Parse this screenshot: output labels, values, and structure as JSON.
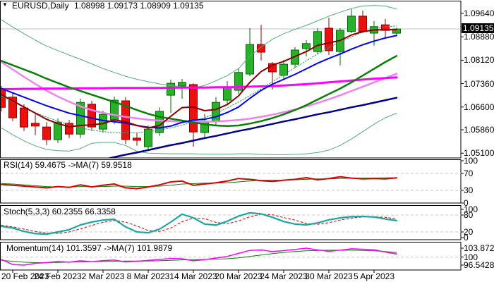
{
  "title": {
    "dropdown_glyph": "▼",
    "symbol_timeframe": "EURUSD,Daily",
    "ohlc_text": "1.08998 1.09173 1.08909 1.09135"
  },
  "colors": {
    "background": "#ffffff",
    "panel_border": "#000000",
    "bull_fill": "#29b129",
    "bull_stroke": "#006b00",
    "bear_fill": "#ed0e0e",
    "bear_stroke": "#8b0000",
    "current_price_line": "#c0c0c0",
    "level_dash": "#c8c8c8",
    "axis_text": "#000000",
    "badge_bg": "#000000",
    "badge_text": "#ffffff"
  },
  "chart_data": {
    "type": "candlestick",
    "symbol": "EURUSD",
    "timeframe": "Daily",
    "title": "EURUSD,Daily 1.08998 1.09173 1.08909 1.09135",
    "current_price_label": "1.09135",
    "current_price": 1.09135,
    "price_axis": {
      "labels": [
        "1.09640",
        "1.08880",
        "1.08120",
        "1.07360",
        "1.06600",
        "1.05860",
        "1.05100"
      ],
      "values": [
        1.0964,
        1.0888,
        1.0812,
        1.0736,
        1.066,
        1.0586,
        1.051
      ]
    },
    "x_axis": {
      "tick_labels": [
        "20 Feb 2023",
        "24 Feb 2023",
        "2 Mar 2023",
        "8 Mar 2023",
        "14 Mar 2023",
        "20 Mar 2023",
        "24 Mar 2023",
        "30 Mar 2023",
        "5 Apr 2023"
      ],
      "tick_candle_indices": [
        1,
        5,
        9,
        13,
        17,
        21,
        25,
        29,
        33
      ]
    },
    "candles": [
      [
        1.0717,
        1.0728,
        1.0646,
        1.0659
      ],
      [
        1.0692,
        1.0705,
        1.0614,
        1.0625
      ],
      [
        1.0657,
        1.0669,
        1.0582,
        1.0595
      ],
      [
        1.0607,
        1.0637,
        1.0568,
        1.0598
      ],
      [
        1.0595,
        1.0611,
        1.0536,
        1.0554
      ],
      [
        1.0554,
        1.0623,
        1.0543,
        1.0611
      ],
      [
        1.0607,
        1.0618,
        1.0559,
        1.0572
      ],
      [
        1.0572,
        1.0687,
        1.0559,
        1.0675
      ],
      [
        1.0669,
        1.068,
        1.0582,
        1.0595
      ],
      [
        1.0588,
        1.0648,
        1.0577,
        1.0636
      ],
      [
        1.0618,
        1.0694,
        1.0604,
        1.0682
      ],
      [
        1.068,
        1.0692,
        1.054,
        1.0554
      ],
      [
        1.0559,
        1.0575,
        1.0534,
        1.0552
      ],
      [
        1.0531,
        1.06,
        1.052,
        1.0588
      ],
      [
        1.0577,
        1.0659,
        1.0566,
        1.0646
      ],
      [
        1.0698,
        1.0749,
        1.0641,
        1.0737
      ],
      [
        1.0728,
        1.0751,
        1.0687,
        1.074
      ],
      [
        1.0733,
        1.0737,
        1.0531,
        1.0579
      ],
      [
        1.0577,
        1.0637,
        1.0561,
        1.0614
      ],
      [
        1.0614,
        1.0692,
        1.0602,
        1.0675
      ],
      [
        1.0682,
        1.0744,
        1.0671,
        1.0726
      ],
      [
        1.0714,
        1.0785,
        1.0703,
        1.0772
      ],
      [
        1.0767,
        1.0916,
        1.076,
        1.0863
      ],
      [
        1.0863,
        1.0927,
        1.0811,
        1.0838
      ],
      [
        1.0801,
        1.0806,
        1.0717,
        1.0774
      ],
      [
        1.0763,
        1.0813,
        1.0747,
        1.0799
      ],
      [
        1.0799,
        1.0854,
        1.0788,
        1.0845
      ],
      [
        1.085,
        1.0877,
        1.0824,
        1.0866
      ],
      [
        1.084,
        1.0916,
        1.0831,
        1.0905
      ],
      [
        1.0916,
        1.095,
        1.0829,
        1.0843
      ],
      [
        1.084,
        1.0916,
        1.0795,
        1.0909
      ],
      [
        1.0905,
        1.0978,
        1.09,
        1.0955
      ],
      [
        1.0955,
        1.0973,
        1.09,
        1.0905
      ],
      [
        1.09,
        1.0939,
        1.0859,
        1.0921
      ],
      [
        1.0927,
        1.0946,
        1.0886,
        1.0909
      ],
      [
        1.08998,
        1.09173,
        1.08909,
        1.09135
      ]
    ],
    "overlays": [
      {
        "name": "bollinger-upper-band",
        "color": "#56ab7c",
        "width": 1,
        "dash": "",
        "values": [
          1.0943,
          1.092,
          1.0898,
          1.0877,
          1.0858,
          1.0843,
          1.0829,
          1.0815,
          1.08,
          1.0785,
          1.0772,
          1.076,
          1.075,
          1.0742,
          1.0735,
          1.073,
          1.0726,
          1.0722,
          1.073,
          1.0745,
          1.0762,
          1.0785,
          1.0825,
          1.0855,
          1.088,
          1.0898,
          1.0912,
          1.0925,
          1.094,
          1.0955,
          1.0968,
          1.098,
          1.0988,
          1.099,
          1.0988,
          1.0978
        ]
      },
      {
        "name": "bollinger-lower-band",
        "color": "#56ab7c",
        "width": 1,
        "dash": "",
        "values": [
          1.0592,
          1.057,
          1.055,
          1.0534,
          1.0522,
          1.0518,
          1.0517,
          1.0525,
          1.0542,
          1.0545,
          1.0545,
          1.0535,
          1.0516,
          1.051,
          1.0509,
          1.0508,
          1.0508,
          1.0508,
          1.0507,
          1.0507,
          1.0507,
          1.0508,
          1.0508,
          1.0506,
          1.0505,
          1.0505,
          1.0506,
          1.0508,
          1.0512,
          1.052,
          1.0535,
          1.0556,
          1.058,
          1.0604,
          1.0625,
          1.064
        ]
      },
      {
        "name": "bollinger-middle-band",
        "color": "#3f9e68",
        "width": 1,
        "dash": "2,2",
        "values": [
          1.0696,
          1.0677,
          1.0659,
          1.0642,
          1.0627,
          1.0614,
          1.0602,
          1.0592,
          1.0585,
          1.058,
          1.0577,
          1.0576,
          1.0577,
          1.058,
          1.0585,
          1.0592,
          1.0601,
          1.0612,
          1.0625,
          1.064,
          1.0657,
          1.0676,
          1.0697,
          1.0719,
          1.0742,
          1.0765,
          1.0788,
          1.081,
          1.0832,
          1.0852,
          1.0871,
          1.0888,
          1.0903,
          1.0914,
          1.0921,
          1.0923
        ]
      },
      {
        "name": "sma200-navy",
        "color": "#00008b",
        "width": 2.5,
        "dash": "",
        "values": [
          1.042,
          1.0428,
          1.0436,
          1.0443,
          1.0451,
          1.0459,
          1.0466,
          1.0474,
          1.0482,
          1.0489,
          1.0497,
          1.0505,
          1.0512,
          1.052,
          1.0528,
          1.0536,
          1.0543,
          1.0551,
          1.0559,
          1.0566,
          1.0574,
          1.0582,
          1.0589,
          1.0597,
          1.0605,
          1.0613,
          1.062,
          1.0628,
          1.0636,
          1.0643,
          1.0651,
          1.0659,
          1.0666,
          1.0674,
          1.0682,
          1.069
        ]
      },
      {
        "name": "sma50-violet",
        "color": "#ee82ee",
        "width": 2.5,
        "dash": "",
        "values": [
          1.0806,
          1.0782,
          1.0758,
          1.0735,
          1.0713,
          1.0694,
          1.0677,
          1.0662,
          1.065,
          1.0641,
          1.0634,
          1.0628,
          1.0623,
          1.0619,
          1.0616,
          1.0614,
          1.0613,
          1.0612,
          1.0612,
          1.0613,
          1.0615,
          1.0618,
          1.0622,
          1.0628,
          1.0635,
          1.0643,
          1.0652,
          1.0662,
          1.0673,
          1.0685,
          1.0698,
          1.0712,
          1.0726,
          1.074,
          1.0754,
          1.0768
        ]
      },
      {
        "name": "sma100-magenta",
        "color": "#ff00ff",
        "width": 3,
        "dash": "",
        "values": [
          1.0718,
          1.0718,
          1.0719,
          1.0719,
          1.072,
          1.072,
          1.072,
          1.0721,
          1.0721,
          1.0721,
          1.0722,
          1.0722,
          1.0722,
          1.0722,
          1.0722,
          1.0723,
          1.0723,
          1.0723,
          1.0723,
          1.0724,
          1.0724,
          1.0725,
          1.0726,
          1.0727,
          1.0728,
          1.073,
          1.0732,
          1.0734,
          1.0737,
          1.074,
          1.0743,
          1.0746,
          1.0749,
          1.0752,
          1.0754,
          1.0756
        ]
      },
      {
        "name": "ma-slow-green",
        "color": "#078007",
        "width": 2.5,
        "dash": "",
        "values": [
          1.081,
          1.0796,
          1.0782,
          1.0768,
          1.0752,
          1.0738,
          1.0724,
          1.0712,
          1.07,
          1.0688,
          1.0676,
          1.0664,
          1.065,
          1.0638,
          1.0628,
          1.0622,
          1.0616,
          1.061,
          1.0604,
          1.06,
          1.0598,
          1.06,
          1.0606,
          1.0614,
          1.0624,
          1.0636,
          1.065,
          1.0666,
          1.0684,
          1.0702,
          1.072,
          1.074,
          1.0762,
          1.0784,
          1.0806,
          1.0826
        ]
      },
      {
        "name": "ma-mid-blue",
        "color": "#0000ff",
        "width": 2,
        "dash": "",
        "values": [
          1.072,
          1.0706,
          1.0692,
          1.0678,
          1.0664,
          1.0652,
          1.064,
          1.0632,
          1.0624,
          1.0616,
          1.0612,
          1.0608,
          1.06,
          1.0594,
          1.0592,
          1.0598,
          1.061,
          1.0618,
          1.062,
          1.0628,
          1.0642,
          1.066,
          1.0688,
          1.0714,
          1.0734,
          1.075,
          1.0766,
          1.0784,
          1.0802,
          1.0818,
          1.0832,
          1.0848,
          1.0862,
          1.0874,
          1.0884,
          1.0892
        ]
      },
      {
        "name": "ma-fast-maroon",
        "color": "#8b0000",
        "width": 2,
        "dash": "",
        "values": [
          1.07,
          1.068,
          1.066,
          1.064,
          1.062,
          1.0606,
          1.0596,
          1.06,
          1.0602,
          1.0606,
          1.0618,
          1.0612,
          1.06,
          1.0592,
          1.06,
          1.063,
          1.0658,
          1.066,
          1.0648,
          1.0652,
          1.0668,
          1.0696,
          1.074,
          1.0775,
          1.0796,
          1.0808,
          1.0824,
          1.084,
          1.086,
          1.0868,
          1.0876,
          1.0894,
          1.0905,
          1.091,
          1.0911,
          1.0911
        ]
      }
    ],
    "panels": [
      {
        "name": "rsi",
        "label": "RSI(14) 59.4675  ->MA(7) 59.9518",
        "levels": [
          70,
          30
        ],
        "axis_labels": [
          "100",
          "70",
          "30",
          "0"
        ],
        "axis_values": [
          100,
          70,
          30,
          0
        ],
        "last_values": {
          "rsi": 59.4675,
          "ma": 59.9518
        },
        "series": [
          {
            "name": "rsi-ma-line",
            "color": "#078007",
            "width": 1,
            "dash": "",
            "values": [
              46,
              45,
              43,
              41,
              39,
              38,
              38,
              39,
              39,
              39,
              40,
              40,
              39,
              39,
              40,
              42,
              45,
              46,
              47,
              47,
              48,
              50,
              52,
              54,
              54,
              54,
              55,
              56,
              57,
              57,
              58,
              59,
              59,
              59.2,
              59.6,
              59.95
            ]
          },
          {
            "name": "rsi-line",
            "color": "#dd0000",
            "width": 2,
            "dash": "",
            "values": [
              44,
              42,
              40,
              38,
              36,
              39,
              37,
              43,
              38,
              42,
              45,
              36,
              34,
              38,
              43,
              50,
              52,
              42,
              45,
              48,
              52,
              58,
              56,
              53,
              51,
              54,
              56,
              60,
              55,
              58,
              62,
              59,
              57,
              58,
              57,
              59.47
            ]
          }
        ]
      },
      {
        "name": "stochastic",
        "label": "Stoch(5,3,3) 60.2355 66.3358",
        "levels": [
          80,
          20
        ],
        "axis_labels": [
          "100",
          "80",
          "20",
          "0"
        ],
        "axis_values": [
          100,
          80,
          20,
          0
        ],
        "last_values": {
          "main": 60.2355,
          "signal": 66.3358
        },
        "series": [
          {
            "name": "stoch-signal-line",
            "color": "#dd0000",
            "width": 1,
            "dash": "3,3",
            "values": [
              44,
              38,
              30,
              22,
              16,
              15,
              20,
              31,
              43,
              54,
              61,
              55,
              41,
              25,
              22,
              34,
              56,
              70,
              67,
              54,
              49,
              59,
              74,
              83,
              81,
              71,
              62,
              50,
              47,
              53,
              62,
              69,
              73,
              74,
              72,
              66.34
            ]
          },
          {
            "name": "stoch-main-line",
            "color": "#17a8a0",
            "width": 2.2,
            "dash": "",
            "values": [
              40,
              34,
              22,
              14,
              12,
              20,
              28,
              45,
              55,
              62,
              65,
              38,
              20,
              17,
              30,
              55,
              83,
              70,
              48,
              44,
              58,
              76,
              88,
              84,
              72,
              57,
              48,
              45,
              52,
              63,
              70,
              74,
              75,
              73,
              66,
              60.24
            ]
          }
        ]
      },
      {
        "name": "momentum",
        "label": "Momentum(14) 101.3597  ->MA(7) 101.9879",
        "levels": [
          100
        ],
        "axis_labels": [
          "103.8726",
          "100",
          "96.5428"
        ],
        "axis_values": [
          103.8726,
          100,
          96.5428
        ],
        "last_values": {
          "momentum": 101.3597,
          "ma": 101.9879
        },
        "series": [
          {
            "name": "momentum-ma-line",
            "color": "#078007",
            "width": 1,
            "dash": "",
            "values": [
              98.6,
              98.2,
              97.8,
              97.6,
              97.6,
              97.7,
              97.8,
              97.9,
              98.0,
              98.1,
              98.2,
              98.3,
              98.3,
              98.3,
              98.4,
              98.6,
              98.8,
              98.9,
              99.0,
              99.1,
              99.3,
              99.7,
              100.3,
              100.9,
              101.5,
              102.0,
              102.4,
              102.7,
              102.9,
              103.0,
              103.0,
              103.0,
              102.9,
              102.7,
              102.4,
              101.99
            ]
          },
          {
            "name": "momentum-line",
            "color": "#ff00ff",
            "width": 1.5,
            "dash": "",
            "values": [
              99.0,
              96.8,
              96.54,
              97.3,
              97.6,
              98.1,
              97.8,
              98.4,
              98.0,
              98.5,
              98.7,
              97.9,
              98.2,
              98.6,
              99.0,
              99.4,
              99.3,
              98.4,
              98.9,
              99.6,
              100.3,
              101.6,
              102.9,
              103.1,
              102.4,
              102.8,
              103.3,
              103.87,
              103.1,
              102.5,
              103.0,
              103.6,
              103.4,
              103.2,
              102.2,
              101.36
            ]
          }
        ]
      }
    ]
  }
}
